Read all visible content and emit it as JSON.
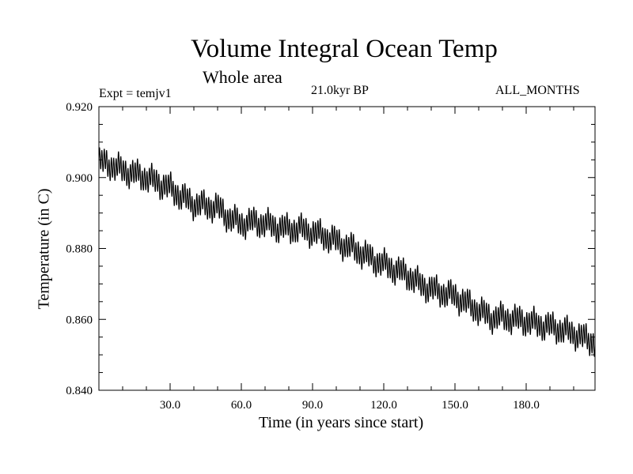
{
  "chart_data": {
    "type": "line",
    "title": "Volume Integral Ocean Temp",
    "subtitle": "Whole area",
    "experiment_label": "Expt = temjv1",
    "period_label": "21.0kyr BP",
    "months_label": "ALL_MONTHS",
    "xlabel": "Time (in years since start)",
    "ylabel": "Temperature (in C)",
    "xlim": [
      0,
      209
    ],
    "ylim": [
      0.84,
      0.92
    ],
    "xticks": [
      30,
      60,
      90,
      120,
      150,
      180
    ],
    "xtick_labels": [
      "30.0",
      "60.0",
      "90.0",
      "120.0",
      "150.0",
      "180.0"
    ],
    "yticks": [
      0.84,
      0.86,
      0.88,
      0.9,
      0.92
    ],
    "ytick_labels": [
      "0.840",
      "0.860",
      "0.880",
      "0.900",
      "0.920"
    ],
    "grid": false,
    "series": [
      {
        "name": "temjv1",
        "color": "#000000",
        "x": [
          0,
          5,
          10,
          15,
          20,
          25,
          30,
          35,
          40,
          45,
          50,
          55,
          60,
          65,
          70,
          75,
          80,
          85,
          90,
          95,
          100,
          105,
          110,
          115,
          120,
          125,
          130,
          135,
          140,
          145,
          150,
          155,
          160,
          165,
          170,
          175,
          180,
          185,
          190,
          195,
          200,
          205,
          209
        ],
        "mean": [
          0.9045,
          0.9035,
          0.902,
          0.901,
          0.9,
          0.8985,
          0.897,
          0.8945,
          0.8925,
          0.892,
          0.8915,
          0.8885,
          0.887,
          0.8875,
          0.887,
          0.886,
          0.8855,
          0.8855,
          0.8845,
          0.8835,
          0.882,
          0.8805,
          0.879,
          0.877,
          0.8755,
          0.874,
          0.8725,
          0.87,
          0.8685,
          0.8675,
          0.8665,
          0.8645,
          0.8625,
          0.8605,
          0.8605,
          0.86,
          0.8595,
          0.8585,
          0.858,
          0.857,
          0.856,
          0.8545,
          0.8535
        ],
        "annual_cycle_amplitude": 0.003
      }
    ]
  }
}
